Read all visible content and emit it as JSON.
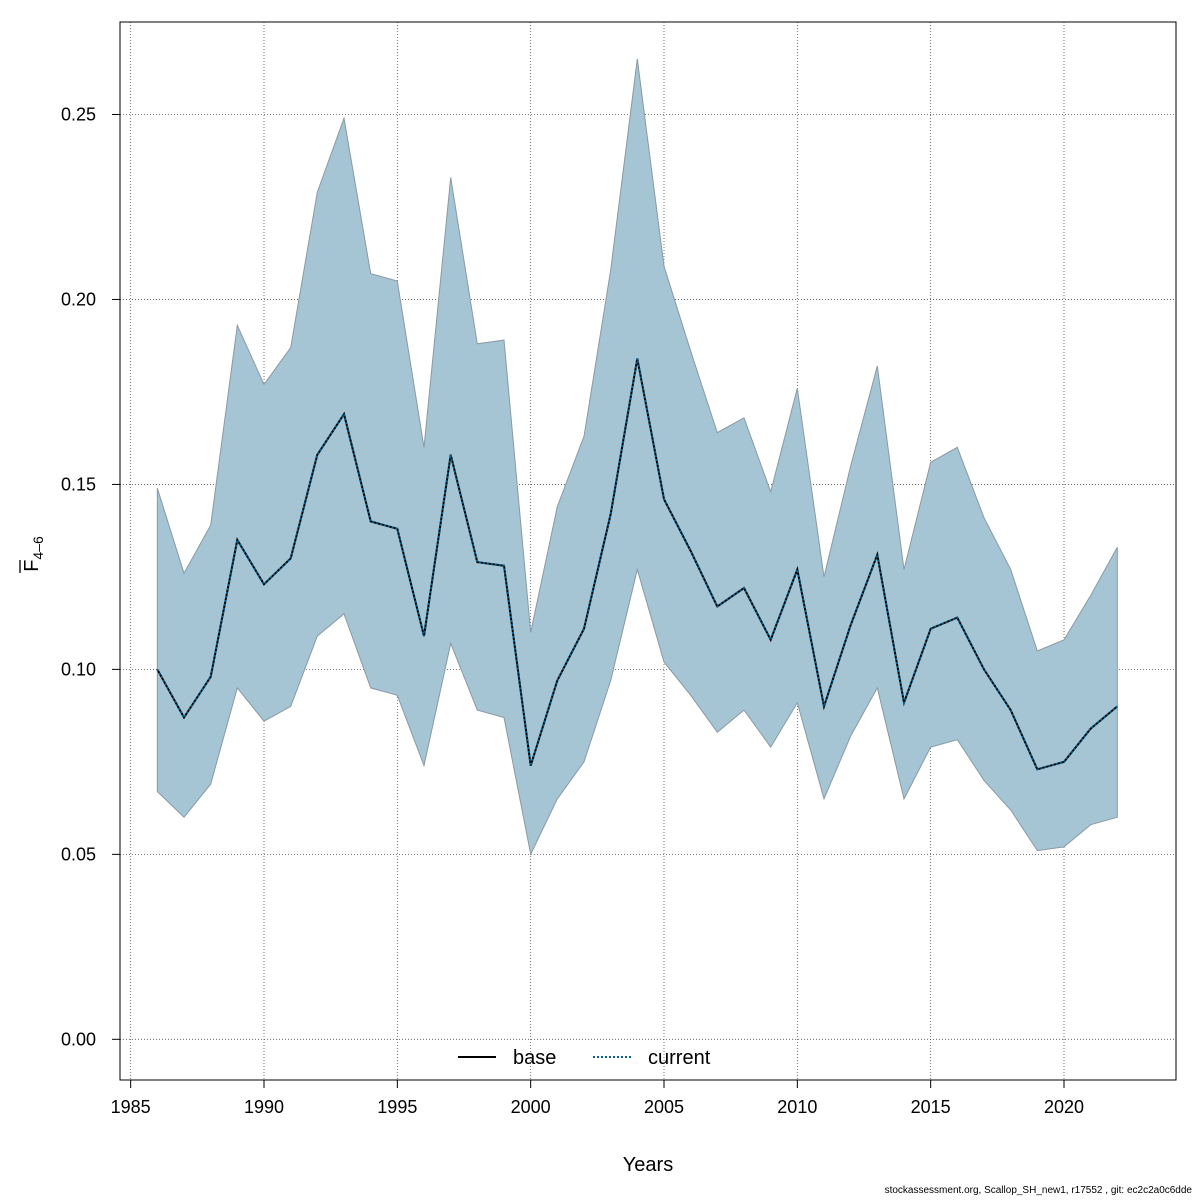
{
  "chart_data": {
    "type": "line",
    "xlabel": "Years",
    "ylabel": {
      "main": "F",
      "subscript": "4–6",
      "overline": true
    },
    "xlim": [
      1984.6,
      2024.2
    ],
    "ylim": [
      -0.011,
      0.275
    ],
    "xticks": [
      1985,
      1990,
      1995,
      2000,
      2005,
      2010,
      2015,
      2020
    ],
    "yticks": [
      0.0,
      0.05,
      0.1,
      0.15,
      0.2,
      0.25
    ],
    "ytick_labels": [
      "0.00",
      "0.05",
      "0.10",
      "0.15",
      "0.20",
      "0.25"
    ],
    "grid": true,
    "legend": {
      "placement": "bottom-center",
      "entries": [
        {
          "label": "base",
          "style": "solid",
          "color": "#000000"
        },
        {
          "label": "current",
          "style": "dotted",
          "color": "#0a5f8a"
        }
      ]
    },
    "colors": {
      "band": "#a5c4d4",
      "band_edge": "#8a9aa4",
      "line_base": "#000000",
      "line_current": "#0a5f8a",
      "grid": "#555555"
    },
    "x": [
      1986,
      1987,
      1988,
      1989,
      1990,
      1991,
      1992,
      1993,
      1994,
      1995,
      1996,
      1997,
      1998,
      1999,
      2000,
      2001,
      2002,
      2003,
      2004,
      2005,
      2006,
      2007,
      2008,
      2009,
      2010,
      2011,
      2012,
      2013,
      2014,
      2015,
      2016,
      2017,
      2018,
      2019,
      2020,
      2021,
      2022
    ],
    "series": [
      {
        "name": "base",
        "values": [
          0.1,
          0.087,
          0.098,
          0.135,
          0.123,
          0.13,
          0.158,
          0.169,
          0.14,
          0.138,
          0.109,
          0.158,
          0.129,
          0.128,
          0.074,
          0.097,
          0.111,
          0.142,
          0.184,
          0.146,
          0.132,
          0.117,
          0.122,
          0.108,
          0.127,
          0.09,
          0.112,
          0.131,
          0.091,
          0.111,
          0.114,
          0.1,
          0.089,
          0.073,
          0.075,
          0.084,
          0.09
        ]
      },
      {
        "name": "current",
        "values": [
          0.1,
          0.087,
          0.098,
          0.135,
          0.123,
          0.13,
          0.158,
          0.169,
          0.14,
          0.138,
          0.109,
          0.158,
          0.129,
          0.128,
          0.074,
          0.097,
          0.111,
          0.142,
          0.184,
          0.146,
          0.132,
          0.117,
          0.122,
          0.108,
          0.127,
          0.09,
          0.112,
          0.131,
          0.091,
          0.111,
          0.114,
          0.1,
          0.089,
          0.073,
          0.075,
          0.084,
          0.09
        ]
      }
    ],
    "band": {
      "lower": [
        0.067,
        0.06,
        0.069,
        0.095,
        0.086,
        0.09,
        0.109,
        0.115,
        0.095,
        0.093,
        0.074,
        0.107,
        0.089,
        0.087,
        0.05,
        0.065,
        0.075,
        0.097,
        0.127,
        0.102,
        0.093,
        0.083,
        0.089,
        0.079,
        0.091,
        0.065,
        0.082,
        0.095,
        0.065,
        0.079,
        0.081,
        0.07,
        0.062,
        0.051,
        0.052,
        0.058,
        0.06
      ],
      "upper": [
        0.149,
        0.126,
        0.139,
        0.193,
        0.177,
        0.187,
        0.229,
        0.249,
        0.207,
        0.205,
        0.16,
        0.233,
        0.188,
        0.189,
        0.11,
        0.144,
        0.163,
        0.208,
        0.265,
        0.209,
        0.186,
        0.164,
        0.168,
        0.148,
        0.176,
        0.125,
        0.155,
        0.182,
        0.127,
        0.156,
        0.16,
        0.141,
        0.127,
        0.105,
        0.108,
        0.12,
        0.133
      ]
    }
  },
  "footer": "stockassessment.org, Scallop_SH_new1, r17552 , git: ec2c2a0c6dde"
}
